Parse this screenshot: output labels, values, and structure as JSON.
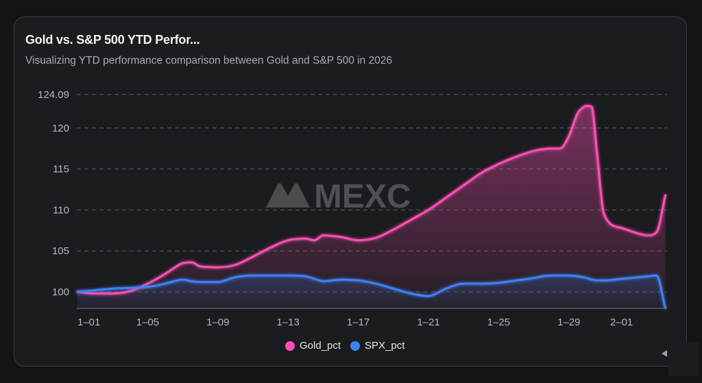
{
  "header": {
    "title": "Gold vs. S&P 500 YTD Perfor...",
    "subtitle": "Visualizing YTD performance comparison between Gold and S&P 500 in 2026"
  },
  "watermark": {
    "text": "MEXC",
    "icon": "mexc-logo-icon"
  },
  "colors": {
    "gold": "#ff4fb4",
    "spx": "#3b82f6",
    "background": "#1b1c1f",
    "grid": "#5a5d66"
  },
  "corner": {
    "icon": "collapse-arrow-icon"
  },
  "chart_data": {
    "type": "line",
    "title": "Gold vs. S&P 500 YTD Perfor...",
    "subtitle": "Visualizing YTD performance comparison between Gold and S&P 500 in 2026",
    "xlabel": "",
    "ylabel": "",
    "ylim": [
      98,
      124.09
    ],
    "yticks": [
      100,
      105,
      110,
      115,
      120,
      124.09
    ],
    "ytick_labels": [
      "100",
      "105",
      "110",
      "115",
      "120",
      "124.09"
    ],
    "xtick_labels": [
      "1–01",
      "1–05",
      "1–09",
      "1–13",
      "1–17",
      "1–21",
      "1–25",
      "1–29",
      "2–01"
    ],
    "xtick_days": [
      0,
      4,
      8,
      12,
      16,
      20,
      24,
      28,
      31
    ],
    "x_range_days": [
      0,
      33.5
    ],
    "grid": true,
    "legend": "bottom-center",
    "values_are_estimates": true,
    "estimate_note": "Series values are read from the line positions; the chart shows no data labels. Accuracy is roughly ±0.3 units.",
    "x": [
      0,
      1,
      2,
      3,
      4,
      5,
      5.5,
      6,
      6.5,
      7,
      8,
      9,
      10,
      11,
      12,
      13,
      13.5,
      14,
      15,
      16,
      17,
      18,
      19,
      20,
      21,
      22,
      23,
      24,
      25,
      26,
      26.5,
      27,
      27.5,
      28,
      28.5,
      28.8,
      29,
      29.3,
      29.6,
      30,
      31,
      32,
      32.5,
      33,
      33.5
    ],
    "series": [
      {
        "name": "Gold_pct",
        "color": "#ff4fb4",
        "values": [
          100.0,
          99.8,
          99.8,
          100.1,
          101.0,
          102.2,
          102.9,
          103.5,
          103.6,
          103.1,
          103.0,
          103.3,
          104.3,
          105.4,
          106.3,
          106.5,
          106.3,
          106.9,
          106.7,
          106.3,
          106.6,
          107.6,
          108.8,
          110.0,
          111.5,
          113.0,
          114.5,
          115.6,
          116.5,
          117.2,
          117.4,
          117.5,
          117.5,
          119.0,
          121.8,
          122.5,
          122.7,
          122.6,
          117.0,
          109.5,
          107.8,
          107.1,
          106.9,
          107.3,
          111.8
        ]
      },
      {
        "name": "SPX_pct",
        "color": "#3b82f6",
        "values": [
          100.0,
          100.2,
          100.4,
          100.5,
          100.6,
          101.0,
          101.3,
          101.5,
          101.3,
          101.2,
          101.2,
          101.8,
          102.0,
          102.0,
          102.0,
          101.9,
          101.6,
          101.3,
          101.5,
          101.4,
          101.0,
          100.4,
          99.8,
          99.5,
          100.4,
          101.0,
          101.0,
          101.1,
          101.4,
          101.7,
          101.9,
          102.0,
          102.0,
          102.0,
          101.9,
          101.8,
          101.7,
          101.5,
          101.4,
          101.4,
          101.6,
          101.8,
          101.9,
          102.0,
          97.5
        ]
      }
    ]
  }
}
